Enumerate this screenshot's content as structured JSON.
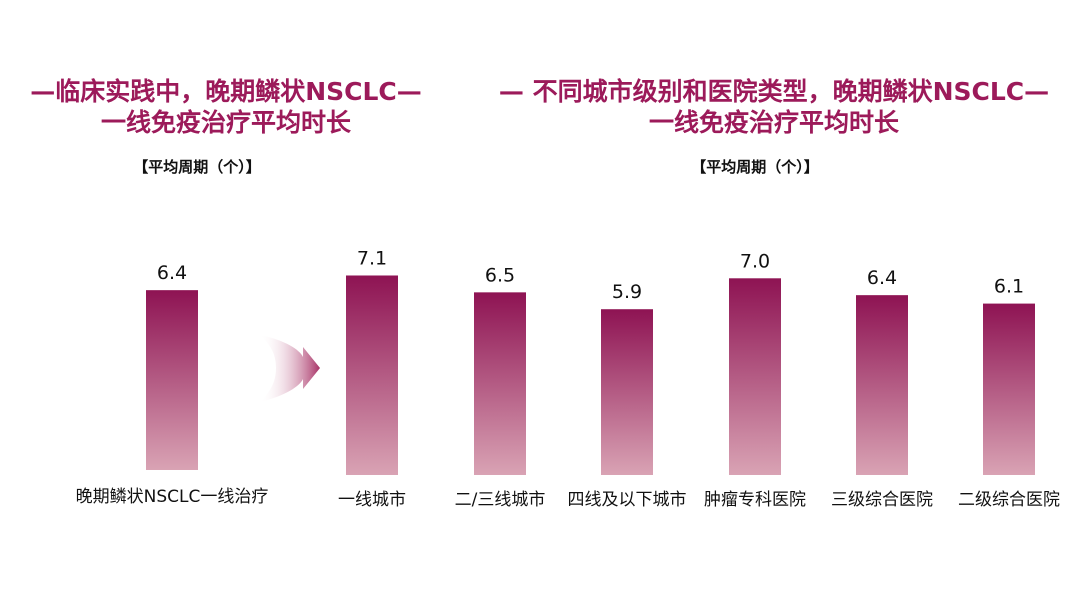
{
  "left_panel": {
    "title_line1": "—临床实践中，晚期鳞状NSCLC—",
    "title_line2": "一线免疫治疗平均时长",
    "subtitle": "【平均周期（个）】"
  },
  "right_panel": {
    "title_line1": "— 不同城市级别和医院类型，晚期鳞状NSCLC—",
    "title_line2": "一线免疫治疗平均时长",
    "subtitle": "【平均周期（个）】"
  },
  "colors": {
    "title": "#9c1a5a",
    "bar_top": "#8e1353",
    "bar_bottom": "#d9a3b4",
    "arrow": "#a83266"
  },
  "chart_data": [
    {
      "type": "bar",
      "categories": [
        "晚期鳞状NSCLC一线治疗"
      ],
      "values": [
        6.4
      ],
      "ylim": [
        0,
        7.5
      ]
    },
    {
      "type": "bar",
      "categories": [
        "一线城市",
        "二/三线城市",
        "四线及以下城市",
        "肿瘤专科医院",
        "三级综合医院",
        "二级综合医院"
      ],
      "values": [
        7.1,
        6.5,
        5.9,
        7.0,
        6.4,
        6.1
      ],
      "ylim": [
        0,
        7.5
      ]
    }
  ]
}
